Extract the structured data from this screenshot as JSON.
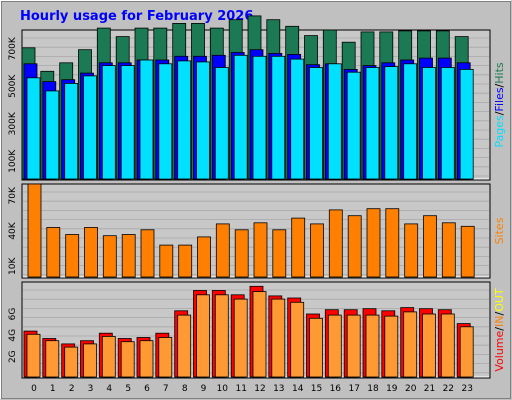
{
  "title": "Hourly usage for February 2026",
  "colors": {
    "background": "#c0c0c0",
    "plot": "#c8c8c8",
    "title": "#0000ff",
    "hits": "#1b7a54",
    "files": "#0000ff",
    "pages": "#00e0ff",
    "visits": "#ff8000",
    "kbytes_in": "#ff0000",
    "kbytes_out": "#ff9933"
  },
  "chart_data": [
    {
      "type": "bar",
      "name": "hits-files-pages",
      "categories": [
        "0",
        "1",
        "2",
        "3",
        "4",
        "5",
        "6",
        "7",
        "8",
        "9",
        "10",
        "11",
        "12",
        "13",
        "14",
        "15",
        "16",
        "17",
        "18",
        "19",
        "20",
        "21",
        "22",
        "23"
      ],
      "ylim": [
        0,
        800000
      ],
      "yticks": [
        100000,
        300000,
        500000,
        700000
      ],
      "ytick_labels": [
        "100K",
        "300K",
        "500K",
        "700K"
      ],
      "legend": [
        "Pages",
        "Files",
        "Hits"
      ],
      "legend_separator": "/",
      "legend_colors": [
        "#00e0ff",
        "#0000ff",
        "#1b7a54"
      ],
      "series": [
        {
          "name": "Hits",
          "color": "#1b7a54",
          "values": [
            705000,
            580000,
            625000,
            695000,
            810000,
            765000,
            810000,
            810000,
            835000,
            835000,
            810000,
            855000,
            875000,
            855000,
            820000,
            770000,
            800000,
            735000,
            790000,
            790000,
            795000,
            795000,
            795000,
            765000
          ]
        },
        {
          "name": "Files",
          "color": "#0000ff",
          "values": [
            620000,
            525000,
            535000,
            570000,
            625000,
            625000,
            640000,
            640000,
            660000,
            660000,
            665000,
            680000,
            695000,
            675000,
            670000,
            615000,
            620000,
            590000,
            610000,
            625000,
            640000,
            650000,
            650000,
            625000
          ]
        },
        {
          "name": "Pages",
          "color": "#00e0ff",
          "values": [
            545000,
            475000,
            515000,
            555000,
            610000,
            610000,
            640000,
            620000,
            635000,
            630000,
            600000,
            665000,
            660000,
            660000,
            645000,
            600000,
            620000,
            575000,
            600000,
            605000,
            620000,
            600000,
            600000,
            590000
          ]
        }
      ]
    },
    {
      "type": "bar",
      "name": "sites",
      "categories": [
        "0",
        "1",
        "2",
        "3",
        "4",
        "5",
        "6",
        "7",
        "8",
        "9",
        "10",
        "11",
        "12",
        "13",
        "14",
        "15",
        "16",
        "17",
        "18",
        "19",
        "20",
        "21",
        "22",
        "23"
      ],
      "ylim": [
        0,
        80000
      ],
      "yticks": [
        10000,
        40000,
        70000
      ],
      "ytick_labels": [
        "10K",
        "40K",
        "70K"
      ],
      "legend": [
        "Sites"
      ],
      "legend_colors": [
        "#ff8000"
      ],
      "series": [
        {
          "name": "Sites",
          "color": "#ff8000",
          "values": [
            80000,
            43000,
            37000,
            43000,
            36000,
            37000,
            41000,
            28000,
            28000,
            35000,
            46000,
            41000,
            47000,
            41000,
            51000,
            46000,
            58000,
            53000,
            59000,
            59000,
            46000,
            53000,
            47000,
            44000
          ]
        }
      ]
    },
    {
      "type": "bar",
      "name": "volume",
      "categories": [
        "0",
        "1",
        "2",
        "3",
        "4",
        "5",
        "6",
        "7",
        "8",
        "9",
        "10",
        "11",
        "12",
        "13",
        "14",
        "15",
        "16",
        "17",
        "18",
        "19",
        "20",
        "21",
        "22",
        "23"
      ],
      "ylim": [
        0,
        9000000000
      ],
      "yticks": [
        2000000000,
        4000000000,
        6000000000
      ],
      "ytick_labels": [
        "2G",
        "4G",
        "6G"
      ],
      "legend": [
        "Volume",
        "IN",
        "OUT"
      ],
      "legend_separator": "/",
      "legend_colors": [
        "#ff0000",
        "#ff8000",
        "#ffff00"
      ],
      "series": [
        {
          "name": "IN",
          "color": "#ff0000",
          "values": [
            4400000000,
            3700000000,
            3200000000,
            3500000000,
            4200000000,
            3700000000,
            3800000000,
            4200000000,
            6300000000,
            8200000000,
            8200000000,
            7800000000,
            8600000000,
            7700000000,
            7500000000,
            6000000000,
            6400000000,
            6400000000,
            6500000000,
            6300000000,
            6600000000,
            6500000000,
            6400000000,
            5100000000
          ]
        },
        {
          "name": "OUT",
          "color": "#ff9933",
          "values": [
            4100000000,
            3500000000,
            2900000000,
            3200000000,
            3900000000,
            3400000000,
            3500000000,
            3800000000,
            5900000000,
            7800000000,
            7800000000,
            7400000000,
            8100000000,
            7400000000,
            7100000000,
            5600000000,
            5900000000,
            5900000000,
            5900000000,
            5800000000,
            6200000000,
            6000000000,
            6000000000,
            4800000000
          ]
        }
      ]
    }
  ]
}
